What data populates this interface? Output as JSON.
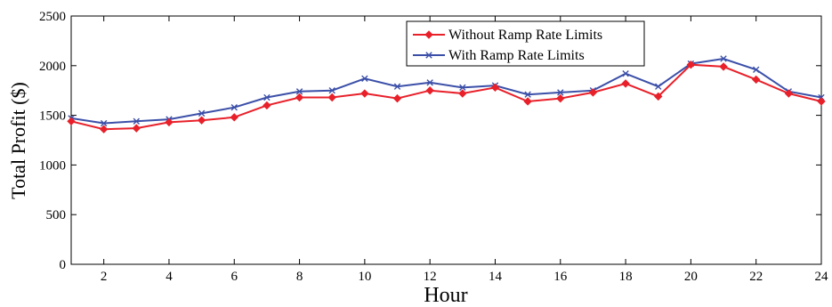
{
  "chart_data": {
    "type": "line",
    "xlabel": "Hour",
    "ylabel": "Total Profit ($)",
    "xlim": [
      1,
      24
    ],
    "ylim": [
      0,
      2500
    ],
    "x_ticks": [
      2,
      4,
      6,
      8,
      10,
      12,
      14,
      16,
      18,
      20,
      22,
      24
    ],
    "y_ticks": [
      0,
      500,
      1000,
      1500,
      2000,
      2500
    ],
    "grid": false,
    "legend_position": "top-center",
    "x": [
      1,
      2,
      3,
      4,
      5,
      6,
      7,
      8,
      9,
      10,
      11,
      12,
      13,
      14,
      15,
      16,
      17,
      18,
      19,
      20,
      21,
      22,
      23,
      24
    ],
    "series": [
      {
        "name": "Without Ramp Rate Limits",
        "color": "#e8202a",
        "marker": "diamond",
        "values": [
          1440,
          1360,
          1370,
          1430,
          1450,
          1480,
          1600,
          1680,
          1680,
          1720,
          1670,
          1750,
          1720,
          1780,
          1640,
          1670,
          1730,
          1820,
          1690,
          2010,
          1990,
          1860,
          1720,
          1640
        ]
      },
      {
        "name": "With Ramp Rate Limits",
        "color": "#3b4fa8",
        "marker": "x",
        "values": [
          1470,
          1420,
          1440,
          1460,
          1520,
          1580,
          1680,
          1740,
          1750,
          1870,
          1790,
          1830,
          1780,
          1800,
          1710,
          1730,
          1750,
          1920,
          1790,
          2020,
          2070,
          1960,
          1740,
          1680
        ]
      }
    ]
  }
}
